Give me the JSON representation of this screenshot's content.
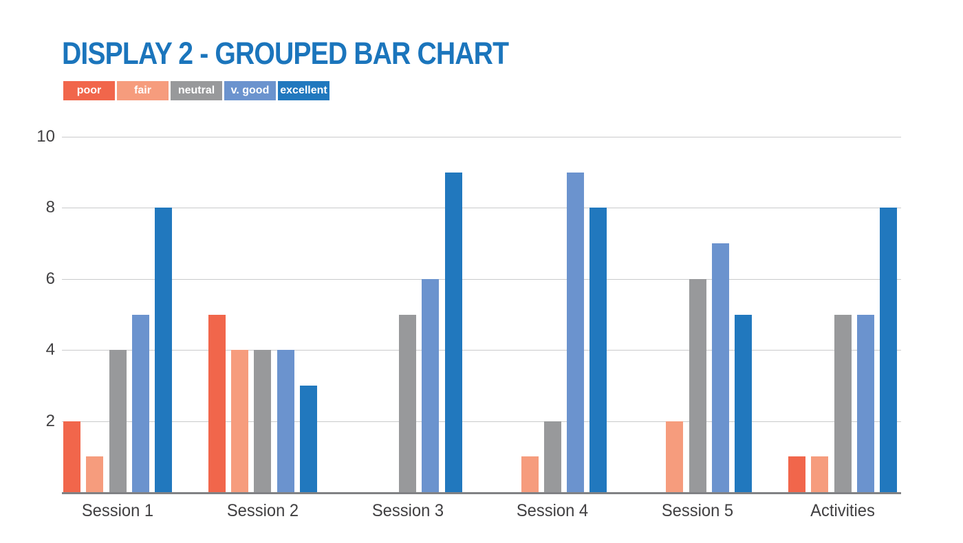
{
  "page": {
    "background": "#ffffff"
  },
  "header": {
    "title": "DISPLAY 2 - GROUPED BAR CHART",
    "title_color": "#1B75BC"
  },
  "legend": {
    "position": "top-left",
    "items": [
      {
        "label": "poor",
        "color": "#F1664B"
      },
      {
        "label": "fair",
        "color": "#F69C7D"
      },
      {
        "label": "neutral",
        "color": "#98999B"
      },
      {
        "label": "v. good",
        "color": "#6B93CE"
      },
      {
        "label": "excellent",
        "color": "#2178BE"
      }
    ]
  },
  "chart_data": {
    "type": "bar",
    "title": "DISPLAY 2 - GROUPED BAR CHART",
    "categories": [
      "Session 1",
      "Session 2",
      "Session 3",
      "Session 4",
      "Session 5",
      "Activities"
    ],
    "series": [
      {
        "name": "poor",
        "color": "#F1664B",
        "values": [
          2,
          5,
          0,
          0,
          0,
          1
        ]
      },
      {
        "name": "fair",
        "color": "#F69C7D",
        "values": [
          1,
          4,
          0,
          1,
          2,
          1
        ]
      },
      {
        "name": "neutral",
        "color": "#98999B",
        "values": [
          4,
          4,
          5,
          2,
          6,
          5
        ]
      },
      {
        "name": "v. good",
        "color": "#6B93CE",
        "values": [
          5,
          4,
          6,
          9,
          7,
          5
        ]
      },
      {
        "name": "excellent",
        "color": "#2178BE",
        "values": [
          8,
          3,
          9,
          8,
          5,
          8
        ]
      }
    ],
    "xlabel": "",
    "ylabel": "",
    "ylim": [
      0,
      10
    ],
    "y_ticks": [
      2,
      4,
      6,
      8,
      10
    ],
    "grid": true,
    "grid_color": "#C9CACB",
    "axis_color": "#808184",
    "tick_label_color": "#414042",
    "legend_position": "top-left"
  }
}
